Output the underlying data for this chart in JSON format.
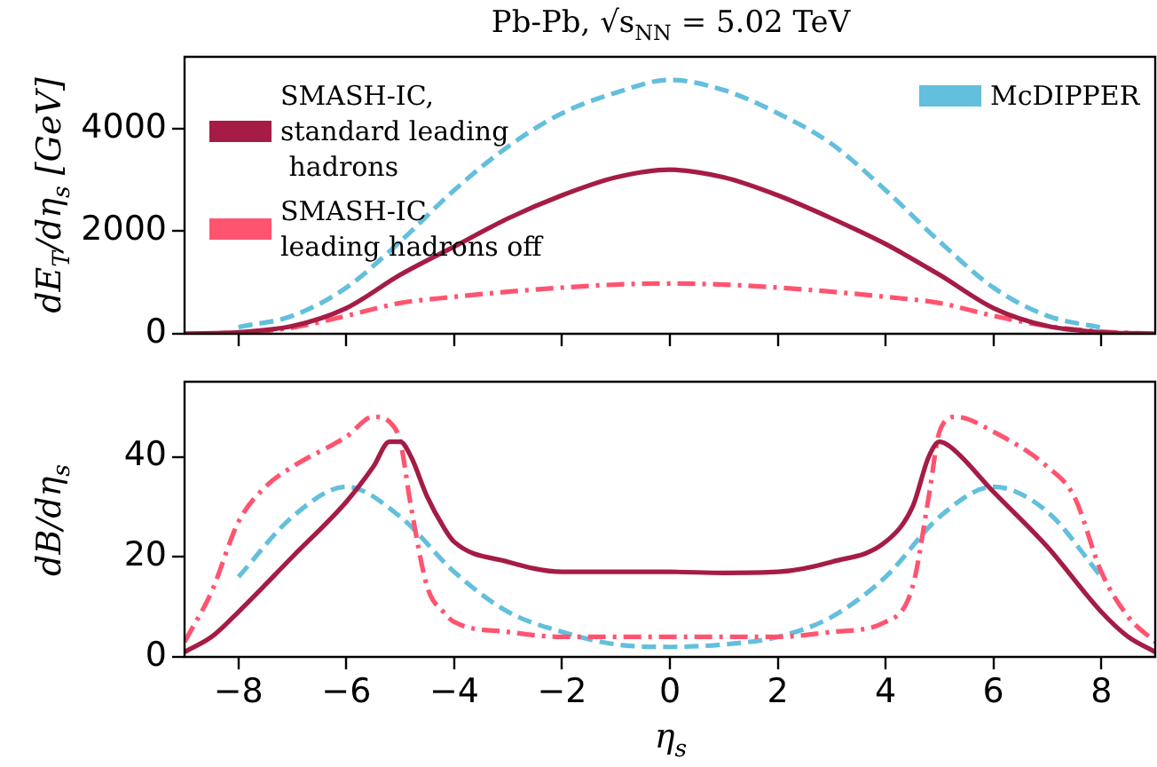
{
  "chart_data": [
    {
      "type": "line",
      "title": "Pb-Pb, √s$_{NN}$ =  5.02 TeV",
      "ylabel": "dE$_{T}$/dη$_{s}$ [GeV]",
      "xlim": [
        -9,
        9
      ],
      "xticks": [
        -8,
        -6,
        -4,
        -2,
        0,
        2,
        4,
        6,
        8
      ],
      "ylim": [
        0,
        5400
      ],
      "yticks": [
        0,
        2000,
        4000
      ],
      "tick_labels": "y",
      "grid": false,
      "legend": "top",
      "series": [
        {
          "name": "SMASH-IC,\nstandard leading\n hadrons",
          "color": "#a51c45",
          "line_style": "solid",
          "x": [
            -9,
            -8,
            -7,
            -6,
            -5,
            -4,
            -3,
            -2,
            -1,
            0,
            1,
            2,
            3,
            4,
            5,
            6,
            7,
            8,
            9
          ],
          "values": [
            0,
            30,
            150,
            500,
            1150,
            1700,
            2250,
            2700,
            3050,
            3200,
            3050,
            2700,
            2250,
            1750,
            1150,
            500,
            150,
            30,
            0
          ]
        },
        {
          "name": "SMASH-IC\nleading hadrons off",
          "color": "#ff5470",
          "line_style": "dashdot",
          "x": [
            -9,
            -8,
            -7,
            -6,
            -5,
            -4,
            -3,
            -2,
            -1,
            0,
            1,
            2,
            3,
            4,
            5,
            6,
            7,
            8,
            9
          ],
          "values": [
            0,
            20,
            120,
            350,
            600,
            720,
            820,
            900,
            960,
            980,
            960,
            900,
            820,
            720,
            600,
            350,
            150,
            40,
            0
          ]
        },
        {
          "name": "McDIPPER",
          "color": "#63bfdd",
          "line_style": "dashed",
          "x": [
            -8,
            -7,
            -6,
            -5,
            -4,
            -3,
            -2,
            -1,
            0,
            1,
            2,
            3,
            4,
            5,
            6,
            7,
            8
          ],
          "values": [
            130,
            350,
            900,
            1800,
            2800,
            3650,
            4300,
            4700,
            4950,
            4750,
            4300,
            3700,
            2800,
            1800,
            900,
            350,
            120
          ]
        }
      ]
    },
    {
      "type": "line",
      "xlabel": "η$_{s}$",
      "ylabel": "dB/dη$_{s}$",
      "xlim": [
        -9,
        9
      ],
      "xticks": [
        -8,
        -6,
        -4,
        -2,
        0,
        2,
        4,
        6,
        8
      ],
      "ylim": [
        0,
        55
      ],
      "yticks": [
        0,
        20,
        40
      ],
      "grid": false,
      "series": [
        {
          "color": "#a51c45",
          "line_style": "solid",
          "x": [
            -9,
            -8.5,
            -8,
            -7,
            -6,
            -5.5,
            -5.2,
            -5,
            -4.8,
            -4.5,
            -4.2,
            -4,
            -3,
            -2,
            -1,
            0,
            1,
            2,
            3,
            4,
            4.5,
            4.8,
            5,
            5.2,
            6,
            7,
            8,
            8.5,
            9
          ],
          "values": [
            1,
            4,
            9,
            20,
            31,
            38,
            43,
            43,
            40,
            32,
            26,
            23,
            19,
            17,
            17,
            17,
            16.8,
            17,
            19,
            23,
            30,
            40,
            43,
            42,
            33,
            22,
            9,
            4,
            1
          ]
        },
        {
          "color": "#ff5470",
          "line_style": "dashdot",
          "x": [
            -9,
            -8.5,
            -8,
            -7.5,
            -7,
            -6,
            -5.5,
            -5.2,
            -5,
            -4.8,
            -4.5,
            -4.2,
            -4,
            -3,
            -2,
            0,
            2,
            3,
            4,
            4.5,
            4.8,
            5,
            5.3,
            6,
            7,
            7.5,
            8,
            8.5,
            9
          ],
          "values": [
            3,
            13,
            27,
            34,
            38,
            44,
            48,
            47,
            43,
            30,
            14,
            9,
            7,
            5,
            4,
            4,
            4,
            5,
            7,
            14,
            32,
            45,
            48,
            45,
            38,
            32,
            17,
            8,
            3
          ]
        },
        {
          "color": "#63bfdd",
          "line_style": "dashed",
          "x": [
            -8,
            -7,
            -6,
            -5,
            -4,
            -3,
            -2,
            -1,
            0,
            1,
            2,
            3,
            4,
            5,
            6,
            7,
            8
          ],
          "values": [
            16,
            28,
            34,
            28,
            17,
            9,
            5,
            2.5,
            2,
            2.5,
            4,
            8,
            16,
            28,
            34,
            29,
            16
          ]
        }
      ]
    }
  ]
}
